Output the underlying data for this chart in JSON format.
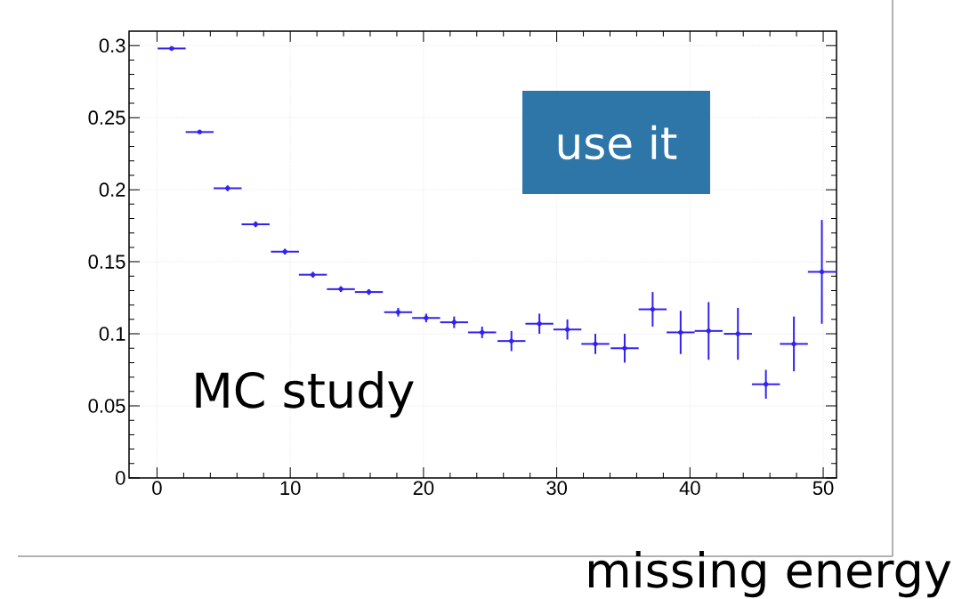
{
  "chart_data": {
    "type": "scatter",
    "xlabel": "missing energy",
    "annotations": [
      "MC study",
      "use it"
    ],
    "x": [
      1.1,
      3.2,
      5.3,
      7.4,
      9.6,
      11.7,
      13.8,
      15.9,
      18.1,
      20.2,
      22.3,
      24.4,
      26.6,
      28.7,
      30.8,
      32.9,
      35.1,
      37.2,
      39.3,
      41.4,
      43.6,
      45.7,
      47.8,
      49.9
    ],
    "series": [
      {
        "color": "#3322ee",
        "values": [
          0.298,
          0.24,
          0.201,
          0.176,
          0.157,
          0.141,
          0.131,
          0.129,
          0.115,
          0.111,
          0.108,
          0.101,
          0.095,
          0.107,
          0.103,
          0.093,
          0.09,
          0.117,
          0.101,
          0.102,
          0.1,
          0.065,
          0.093,
          0.143
        ],
        "errors": [
          0.001,
          0.001,
          0.002,
          0.002,
          0.002,
          0.002,
          0.002,
          0.002,
          0.003,
          0.003,
          0.004,
          0.004,
          0.007,
          0.007,
          0.007,
          0.007,
          0.01,
          0.012,
          0.015,
          0.02,
          0.018,
          0.01,
          0.019,
          0.036
        ],
        "xerrors": [
          1.05,
          1.05,
          1.05,
          1.05,
          1.05,
          1.05,
          1.05,
          1.05,
          1.05,
          1.05,
          1.05,
          1.05,
          1.05,
          1.05,
          1.05,
          1.05,
          1.05,
          1.05,
          1.05,
          1.05,
          1.05,
          1.05,
          1.05,
          1.05
        ]
      }
    ],
    "xlim": [
      -2.1,
      51
    ],
    "ylim": [
      0,
      0.31
    ],
    "xticks": [
      0,
      10,
      20,
      30,
      40,
      50
    ],
    "yticks": [
      0,
      0.05,
      0.1,
      0.15,
      0.2,
      0.25,
      0.3
    ],
    "grid": true,
    "marker": "circle"
  }
}
